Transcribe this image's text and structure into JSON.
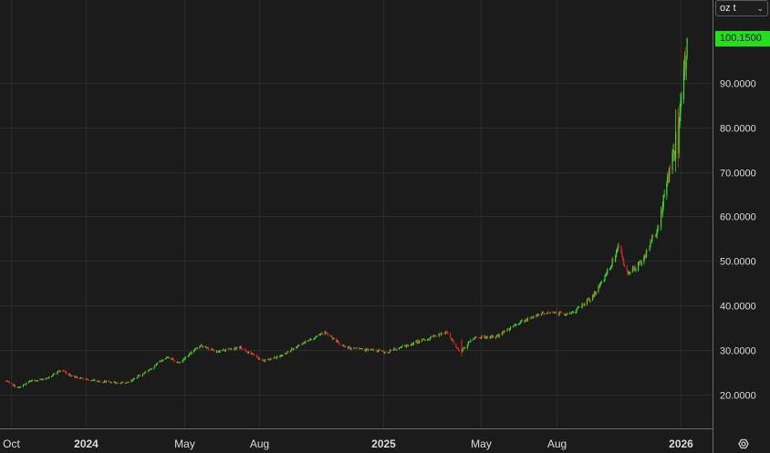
{
  "unit_selector": {
    "value": "oz t"
  },
  "last_price_label": "100.1500",
  "colors": {
    "up": "#2ee02a",
    "down": "#e22020",
    "badge": "#22e01c",
    "grid": "#2b2b2b",
    "text": "#dcdcdc"
  },
  "icons": {
    "settings": "settings-gear-icon",
    "dropdown": "chevron-down-icon"
  },
  "chart_data": {
    "type": "candlestick",
    "title": "",
    "xlabel": "",
    "ylabel": "",
    "ylim": [
      12,
      104
    ],
    "y_ticks": [
      20,
      30,
      40,
      50,
      60,
      70,
      80,
      90
    ],
    "y_tick_labels": [
      "20.0000",
      "30.0000",
      "40.0000",
      "50.0000",
      "60.0000",
      "70.0000",
      "80.0000",
      "90.0000"
    ],
    "x_ticks": [
      {
        "date": "2023-10-01",
        "label": "Oct"
      },
      {
        "date": "2024-01-01",
        "label": "2024"
      },
      {
        "date": "2024-05-01",
        "label": "May"
      },
      {
        "date": "2024-08-01",
        "label": "Aug"
      },
      {
        "date": "2025-01-01",
        "label": "2025"
      },
      {
        "date": "2025-05-01",
        "label": "May"
      },
      {
        "date": "2025-08-01",
        "label": "Aug"
      },
      {
        "date": "2026-01-01",
        "label": "2026"
      }
    ],
    "x_range": [
      "2023-10-01",
      "2026-01-09"
    ],
    "close_path": [
      [
        "2023-09-25",
        23.0
      ],
      [
        "2023-10-10",
        21.5
      ],
      [
        "2023-10-25",
        23.0
      ],
      [
        "2023-11-15",
        23.5
      ],
      [
        "2023-12-01",
        25.5
      ],
      [
        "2023-12-15",
        24.0
      ],
      [
        "2024-01-15",
        23.0
      ],
      [
        "2024-02-20",
        22.5
      ],
      [
        "2024-03-15",
        25.0
      ],
      [
        "2024-04-10",
        28.5
      ],
      [
        "2024-04-25",
        27.0
      ],
      [
        "2024-05-20",
        31.0
      ],
      [
        "2024-06-10",
        29.5
      ],
      [
        "2024-07-10",
        30.5
      ],
      [
        "2024-08-05",
        27.5
      ],
      [
        "2024-08-25",
        28.5
      ],
      [
        "2024-09-25",
        31.5
      ],
      [
        "2024-10-20",
        34.0
      ],
      [
        "2024-11-15",
        30.5
      ],
      [
        "2024-12-10",
        30.0
      ],
      [
        "2025-01-05",
        29.5
      ],
      [
        "2025-02-15",
        32.0
      ],
      [
        "2025-03-20",
        34.0
      ],
      [
        "2025-04-05",
        29.5
      ],
      [
        "2025-04-20",
        32.5
      ],
      [
        "2025-05-20",
        33.0
      ],
      [
        "2025-06-15",
        36.0
      ],
      [
        "2025-07-20",
        38.5
      ],
      [
        "2025-08-20",
        38.0
      ],
      [
        "2025-09-15",
        42.0
      ],
      [
        "2025-10-05",
        48.0
      ],
      [
        "2025-10-17",
        53.0
      ],
      [
        "2025-10-28",
        47.0
      ],
      [
        "2025-11-15",
        50.0
      ],
      [
        "2025-12-05",
        58.0
      ],
      [
        "2025-12-20",
        72.0
      ],
      [
        "2025-12-29",
        78.0
      ],
      [
        "2026-01-05",
        92.0
      ],
      [
        "2026-01-09",
        100.15
      ]
    ],
    "notable_candles": [
      {
        "date": "2025-04-07",
        "open": 32.0,
        "high": 32.5,
        "low": 28.5,
        "close": 29.5
      },
      {
        "date": "2025-12-26",
        "open": 73.0,
        "high": 84.0,
        "low": 70.0,
        "close": 79.0
      },
      {
        "date": "2025-12-29",
        "open": 84.0,
        "high": 84.5,
        "low": 71.0,
        "close": 74.0
      },
      {
        "date": "2026-01-09",
        "open": 96.0,
        "high": 100.15,
        "low": 95.0,
        "close": 100.15
      }
    ],
    "last_price": 100.15
  }
}
